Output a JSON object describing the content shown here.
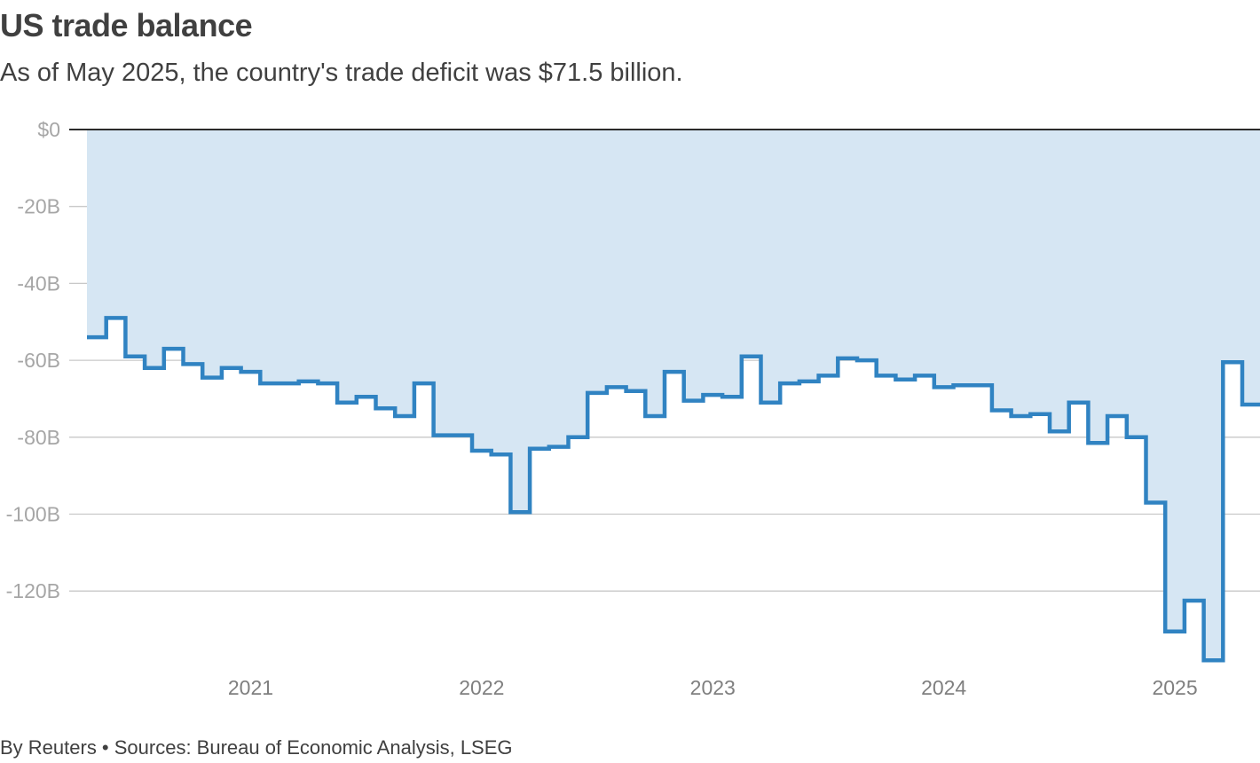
{
  "chart_data": {
    "type": "line",
    "title": "US trade balance",
    "subtitle": "As of May 2025, the country's trade deficit was $71.5 billion.",
    "footer": "By Reuters • Sources: Bureau of Economic Analysis, LSEG",
    "x_start": "2020-05",
    "x_end": "2025-05",
    "x_tick_labels": [
      "2021",
      "2022",
      "2023",
      "2024",
      "2025"
    ],
    "y_tick_labels": [
      "$0",
      "-20B",
      "-40B",
      "-60B",
      "-80B",
      "-100B",
      "-120B"
    ],
    "y_ticks": [
      0,
      -20,
      -40,
      -60,
      -80,
      -100,
      -120
    ],
    "ylim": [
      -142,
      0
    ],
    "grid": true,
    "colors": {
      "line": "#3083c2",
      "area": "#d6e6f3",
      "grid": "#c8c8c8",
      "zero": "#2b2b2b"
    },
    "series": [
      {
        "x": [
          "2020-05",
          "2020-06",
          "2020-07",
          "2020-08",
          "2020-09",
          "2020-10",
          "2020-11",
          "2020-12",
          "2021-01",
          "2021-02",
          "2021-03",
          "2021-04",
          "2021-05",
          "2021-06",
          "2021-07",
          "2021-08",
          "2021-09",
          "2021-10",
          "2021-11",
          "2021-12",
          "2022-01",
          "2022-02",
          "2022-03",
          "2022-04",
          "2022-05",
          "2022-06",
          "2022-07",
          "2022-08",
          "2022-09",
          "2022-10",
          "2022-11",
          "2022-12",
          "2023-01",
          "2023-02",
          "2023-03",
          "2023-04",
          "2023-05",
          "2023-06",
          "2023-07",
          "2023-08",
          "2023-09",
          "2023-10",
          "2023-11",
          "2023-12",
          "2024-01",
          "2024-02",
          "2024-03",
          "2024-04",
          "2024-05",
          "2024-06",
          "2024-07",
          "2024-08",
          "2024-09",
          "2024-10",
          "2024-11",
          "2024-12",
          "2025-01",
          "2025-02",
          "2025-03",
          "2025-04",
          "2025-05"
        ],
        "values": [
          -54,
          -49,
          -59,
          -62,
          -57,
          -61,
          -64.5,
          -62,
          -63,
          -66,
          -66,
          -65.5,
          -66,
          -71,
          -69.5,
          -72.5,
          -74.5,
          -66,
          -79.5,
          -79.5,
          -83.5,
          -84.5,
          -99.5,
          -83,
          -82.5,
          -80,
          -68.5,
          -67,
          -68,
          -74.5,
          -63,
          -70.5,
          -69,
          -69.5,
          -59,
          -71,
          -66,
          -65.5,
          -64,
          -59.5,
          -60,
          -64,
          -65,
          -64,
          -67,
          -66.5,
          -66.5,
          -73,
          -74.5,
          -74,
          -78.5,
          -71,
          -81.5,
          -74.5,
          -80,
          -97,
          -130.5,
          -122.5,
          -138,
          -60.5,
          -71.5
        ]
      }
    ]
  }
}
